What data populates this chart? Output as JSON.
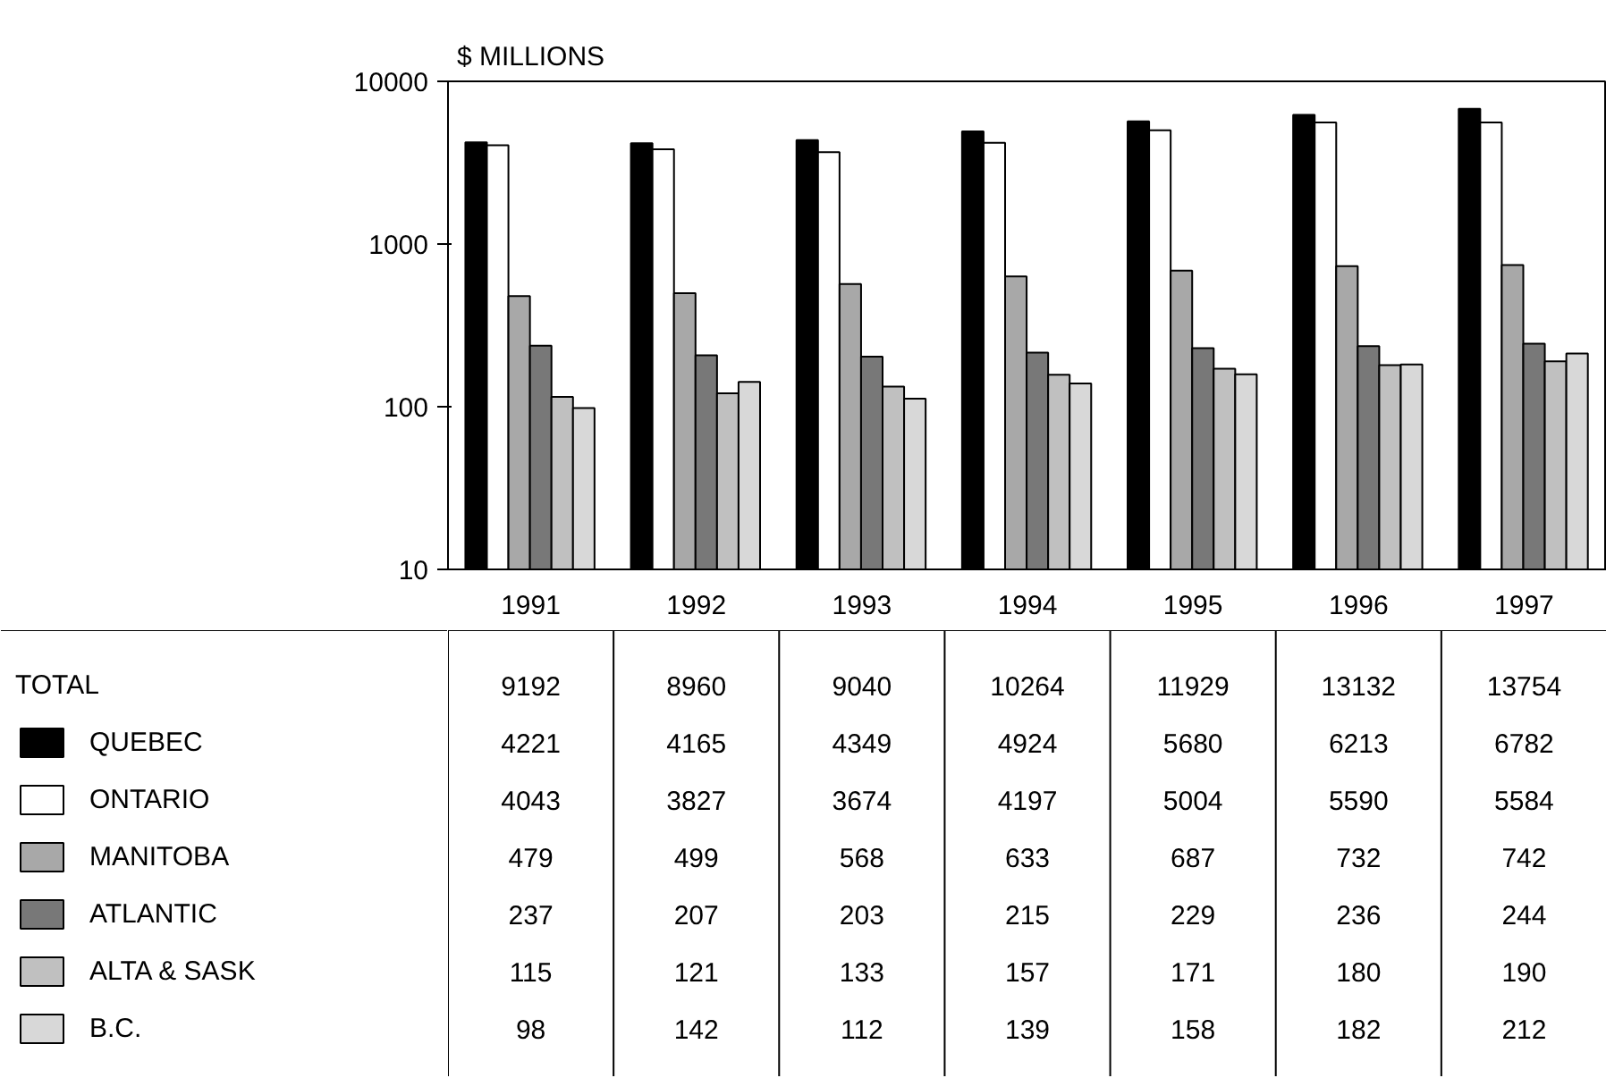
{
  "chart_data": {
    "type": "bar",
    "ylabel": "$ MILLIONS",
    "log": true,
    "ylim": [
      10,
      10000
    ],
    "yticks": [
      10,
      100,
      1000,
      10000
    ],
    "categories": [
      "1991",
      "1992",
      "1993",
      "1994",
      "1995",
      "1996",
      "1997"
    ],
    "series": [
      {
        "name": "QUEBEC",
        "color": "#000000",
        "values": [
          4221,
          4165,
          4349,
          4924,
          5680,
          6213,
          6782
        ]
      },
      {
        "name": "ONTARIO",
        "color": "#ffffff",
        "values": [
          4043,
          3827,
          3674,
          4197,
          5004,
          5590,
          5584
        ]
      },
      {
        "name": "MANITOBA",
        "color": "#a8a8a8",
        "values": [
          479,
          499,
          568,
          633,
          687,
          732,
          742
        ]
      },
      {
        "name": "ATLANTIC",
        "color": "#787878",
        "values": [
          237,
          207,
          203,
          215,
          229,
          236,
          244
        ]
      },
      {
        "name": "ALTA & SASK",
        "color": "#c0c0c0",
        "values": [
          115,
          121,
          133,
          157,
          171,
          180,
          190
        ]
      },
      {
        "name": "B.C.",
        "color": "#d8d8d8",
        "values": [
          98,
          142,
          112,
          139,
          158,
          182,
          212
        ]
      }
    ],
    "data_labels": true,
    "annotations": [
      "TOTAL",
      "9192",
      "8960",
      "9040",
      "10264",
      "11929",
      "13132",
      "13754"
    ],
    "legend": "bottom left",
    "grid": false
  }
}
